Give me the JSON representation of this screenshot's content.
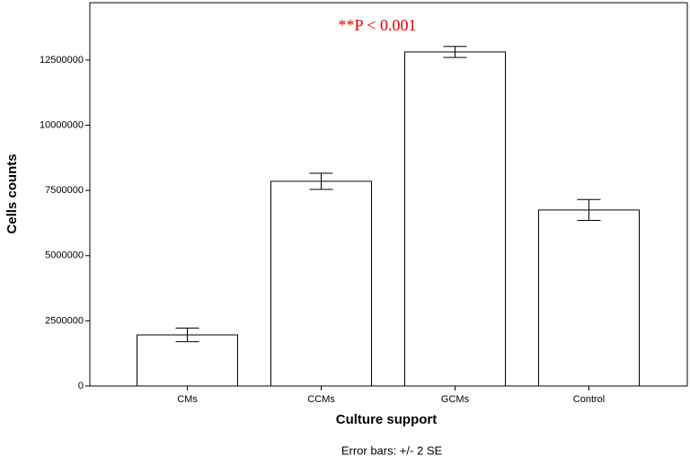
{
  "chart_data": {
    "type": "bar",
    "annotation": "**P < 0.001",
    "x_label": "Culture support",
    "y_label": "Cells counts",
    "footnote": "Error bars: +/- 2 SE",
    "categories": [
      "CMs",
      "CCMs",
      "GCMs",
      "Control"
    ],
    "values": [
      1960000,
      7850000,
      12810000,
      6750000
    ],
    "errors": [
      260000,
      310000,
      210000,
      400000
    ],
    "color": "#ffffff",
    "ylim": [
      0,
      14700000
    ],
    "yticks": [
      0,
      2500000,
      5000000,
      7500000,
      10000000,
      12500000
    ],
    "grid": false
  }
}
